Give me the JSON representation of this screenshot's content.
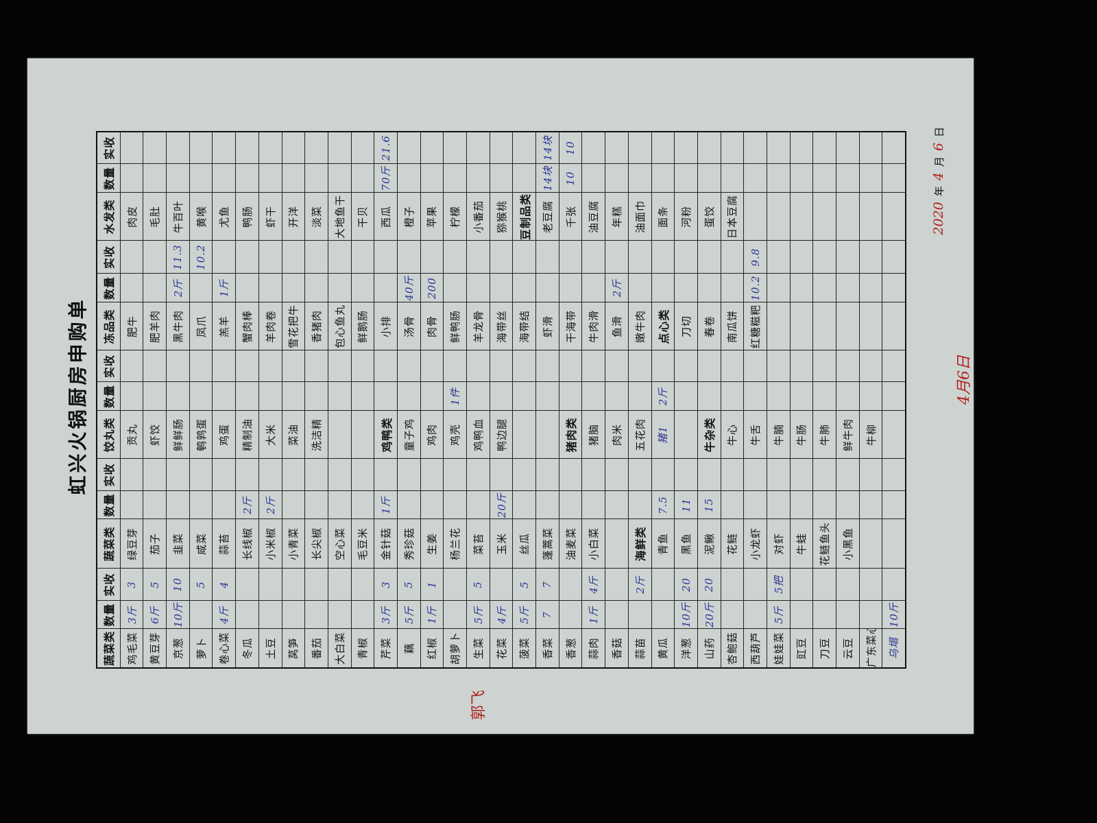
{
  "form": {
    "title": "虹兴火锅厨房申购单",
    "headers": [
      [
        "蔬菜类",
        "数量",
        "实收"
      ],
      [
        "蔬菜类",
        "数量",
        "实收"
      ],
      [
        "饺丸类",
        "数量",
        "实收"
      ],
      [
        "冻品类",
        "数量",
        "实收"
      ],
      [
        "水发类",
        "数量",
        "实收"
      ]
    ],
    "rows": [
      [
        [
          "鸡毛菜",
          "3斤",
          "3"
        ],
        [
          "绿豆芽",
          "",
          ""
        ],
        [
          "贡丸",
          "",
          ""
        ],
        [
          "肥牛",
          "",
          ""
        ],
        [
          "肉皮",
          "",
          ""
        ]
      ],
      [
        [
          "黄豆芽",
          "6斤",
          "5"
        ],
        [
          "茄子",
          "",
          ""
        ],
        [
          "虾饺",
          "",
          ""
        ],
        [
          "肥羊肉",
          "",
          ""
        ],
        [
          "毛肚",
          "",
          ""
        ]
      ],
      [
        [
          "京葱",
          "10斤",
          "10"
        ],
        [
          "韭菜",
          "",
          ""
        ],
        [
          "鲜鲜肠",
          "",
          ""
        ],
        [
          "黑牛肉",
          "2斤",
          "11.3"
        ],
        [
          "牛百叶",
          "",
          ""
        ]
      ],
      [
        [
          "萝卜",
          "",
          "5"
        ],
        [
          "咸菜",
          "",
          ""
        ],
        [
          "鹌鹑蛋",
          "",
          ""
        ],
        [
          "凤爪",
          "",
          "10.2"
        ],
        [
          "黄喉",
          "",
          ""
        ]
      ],
      [
        [
          "卷心菜",
          "4斤",
          "4"
        ],
        [
          "蒜苔",
          "",
          ""
        ],
        [
          "鸡蛋",
          "",
          ""
        ],
        [
          "羔羊",
          "1斤",
          ""
        ],
        [
          "尤鱼",
          "",
          ""
        ]
      ],
      [
        [
          "冬瓜",
          "",
          ""
        ],
        [
          "长线椒",
          "2斤",
          ""
        ],
        [
          "精制油",
          "",
          ""
        ],
        [
          "蟹肉棒",
          "",
          ""
        ],
        [
          "鸭肠",
          "",
          ""
        ]
      ],
      [
        [
          "土豆",
          "",
          ""
        ],
        [
          "小米椒",
          "2斤",
          ""
        ],
        [
          "大米",
          "",
          ""
        ],
        [
          "羊肉卷",
          "",
          ""
        ],
        [
          "虾干",
          "",
          ""
        ]
      ],
      [
        [
          "莴笋",
          "",
          ""
        ],
        [
          "小青菜",
          "",
          ""
        ],
        [
          "菜油",
          "",
          ""
        ],
        [
          "雪花把牛",
          "",
          ""
        ],
        [
          "开洋",
          "",
          ""
        ]
      ],
      [
        [
          "番茄",
          "",
          ""
        ],
        [
          "长尖椒",
          "",
          ""
        ],
        [
          "洗洁精",
          "",
          ""
        ],
        [
          "香猪肉",
          "",
          ""
        ],
        [
          "淡菜",
          "",
          ""
        ]
      ],
      [
        [
          "大白菜",
          "",
          ""
        ],
        [
          "空心菜",
          "",
          ""
        ],
        [
          "",
          "",
          ""
        ],
        [
          "包心鱼丸",
          "",
          ""
        ],
        [
          "大地鱼干",
          "",
          ""
        ]
      ],
      [
        [
          "青椒",
          "",
          ""
        ],
        [
          "毛豆米",
          "",
          ""
        ],
        [
          "",
          "",
          ""
        ],
        [
          "鲜鹅肠",
          "",
          ""
        ],
        [
          "干贝",
          "",
          ""
        ]
      ],
      [
        [
          "芹菜",
          "3斤",
          "3"
        ],
        [
          "金针菇",
          "1斤",
          ""
        ],
        [
          "鸡鸭类",
          "",
          ""
        ],
        [
          "小排",
          "",
          ""
        ],
        [
          "西瓜",
          "70斤",
          "21.6"
        ]
      ],
      [
        [
          "藕",
          "5斤",
          "5"
        ],
        [
          "秀珍菇",
          "",
          ""
        ],
        [
          "童子鸡",
          "",
          ""
        ],
        [
          "汤骨",
          "40斤",
          ""
        ],
        [
          "橙子",
          "",
          ""
        ]
      ],
      [
        [
          "红椒",
          "1斤",
          "1"
        ],
        [
          "生姜",
          "",
          ""
        ],
        [
          "鸡肉",
          "",
          ""
        ],
        [
          "肉骨",
          "200",
          ""
        ],
        [
          "苹果",
          "",
          ""
        ]
      ],
      [
        [
          "胡萝卜",
          "",
          ""
        ],
        [
          "杨兰花",
          "",
          ""
        ],
        [
          "鸡壳",
          "1件",
          ""
        ],
        [
          "鲜鸭肠",
          "",
          ""
        ],
        [
          "柠檬",
          "",
          ""
        ]
      ],
      [
        [
          "生菜",
          "5斤",
          "5"
        ],
        [
          "菜苔",
          "",
          ""
        ],
        [
          "鸡鸭血",
          "",
          ""
        ],
        [
          "羊龙骨",
          "",
          ""
        ],
        [
          "小番茄",
          "",
          ""
        ]
      ],
      [
        [
          "花菜",
          "4斤",
          ""
        ],
        [
          "玉米",
          "20斤",
          ""
        ],
        [
          "鸭边腿",
          "",
          ""
        ],
        [
          "海带丝",
          "",
          ""
        ],
        [
          "猕猴桃",
          "",
          ""
        ]
      ],
      [
        [
          "菠菜",
          "5斤",
          "5"
        ],
        [
          "丝瓜",
          "",
          ""
        ],
        [
          "",
          "",
          ""
        ],
        [
          "海带结",
          "",
          ""
        ],
        [
          "豆制品类",
          "",
          ""
        ]
      ],
      [
        [
          "香菜",
          "7",
          "7"
        ],
        [
          "蓬蒿菜",
          "",
          ""
        ],
        [
          "",
          "",
          ""
        ],
        [
          "虾滑",
          "",
          ""
        ],
        [
          "老豆腐",
          "14块",
          "14块"
        ]
      ],
      [
        [
          "香葱",
          "",
          ""
        ],
        [
          "油麦菜",
          "",
          ""
        ],
        [
          "猪肉类",
          "",
          ""
        ],
        [
          "干海带",
          "",
          ""
        ],
        [
          "千张",
          "10",
          "10"
        ]
      ],
      [
        [
          "蒜肉",
          "1斤",
          "4斤"
        ],
        [
          "小白菜",
          "",
          ""
        ],
        [
          "猪脑",
          "",
          ""
        ],
        [
          "牛肉滑",
          "",
          ""
        ],
        [
          "油豆腐",
          "",
          ""
        ]
      ],
      [
        [
          "香菇",
          "",
          ""
        ],
        [
          "",
          "",
          ""
        ],
        [
          "肉米",
          "",
          ""
        ],
        [
          "鱼滑",
          "2斤",
          ""
        ],
        [
          "年糕",
          "",
          ""
        ]
      ],
      [
        [
          "蒜苗",
          "",
          "2斤"
        ],
        [
          "海鲜类",
          "",
          ""
        ],
        [
          "五花肉",
          "",
          ""
        ],
        [
          "嫩牛肉",
          "",
          ""
        ],
        [
          "油面巾",
          "",
          ""
        ]
      ],
      [
        [
          "黄瓜",
          "",
          ""
        ],
        [
          "青鱼",
          "7.5",
          ""
        ],
        [
          "猪1",
          "2斤",
          ""
        ],
        [
          "点心类",
          "",
          ""
        ],
        [
          "面条",
          "",
          ""
        ]
      ],
      [
        [
          "洋葱",
          "10斤",
          "20"
        ],
        [
          "黑鱼",
          "11",
          ""
        ],
        [
          "",
          "",
          ""
        ],
        [
          "刀切",
          "",
          ""
        ],
        [
          "河粉",
          "",
          ""
        ]
      ],
      [
        [
          "山药",
          "20斤",
          "20"
        ],
        [
          "泥鳅",
          "15",
          ""
        ],
        [
          "牛杂类",
          "",
          ""
        ],
        [
          "春卷",
          "",
          ""
        ],
        [
          "蛋饺",
          "",
          ""
        ]
      ],
      [
        [
          "杏鲍菇",
          "",
          ""
        ],
        [
          "花鲢",
          "",
          ""
        ],
        [
          "牛心",
          "",
          ""
        ],
        [
          "南瓜饼",
          "",
          ""
        ],
        [
          "日本豆腐",
          "",
          ""
        ]
      ],
      [
        [
          "西葫芦",
          "",
          ""
        ],
        [
          "小龙虾",
          "",
          ""
        ],
        [
          "牛舌",
          "",
          ""
        ],
        [
          "红糖糍粑",
          "10.2",
          "9.8"
        ],
        [
          "",
          "",
          ""
        ]
      ],
      [
        [
          "娃娃菜",
          "5斤",
          "5把"
        ],
        [
          "对虾",
          "",
          ""
        ],
        [
          "牛腩",
          "",
          ""
        ],
        [
          "",
          "",
          ""
        ],
        [
          "",
          "",
          ""
        ]
      ],
      [
        [
          "豇豆",
          "",
          ""
        ],
        [
          "牛蛙",
          "",
          ""
        ],
        [
          "牛肠",
          "",
          ""
        ],
        [
          "",
          "",
          ""
        ],
        [
          "",
          "",
          ""
        ]
      ],
      [
        [
          "刀豆",
          "",
          ""
        ],
        [
          "花鲢鱼头",
          "",
          ""
        ],
        [
          "牛肺",
          "",
          ""
        ],
        [
          "",
          "",
          ""
        ],
        [
          "",
          "",
          ""
        ]
      ],
      [
        [
          "云豆",
          "",
          ""
        ],
        [
          "小黑鱼",
          "",
          ""
        ],
        [
          "鲜牛肉",
          "",
          ""
        ],
        [
          "",
          "",
          ""
        ],
        [
          "",
          "",
          ""
        ]
      ],
      [
        [
          "广东菜心",
          "",
          ""
        ],
        [
          "",
          "",
          ""
        ],
        [
          "牛柳",
          "",
          ""
        ],
        [
          "",
          "",
          ""
        ],
        [
          "",
          "",
          ""
        ]
      ],
      [
        [
          "乌塌",
          "10斤",
          ""
        ],
        [
          "",
          "",
          ""
        ],
        [
          "",
          "",
          ""
        ],
        [
          "",
          "",
          ""
        ],
        [
          "",
          "",
          ""
        ]
      ]
    ],
    "section_headers": [
      "鸡鸭类",
      "猪肉类",
      "海鲜类",
      "牛杂类",
      "点心类",
      "豆制品类"
    ],
    "handwritten_items": [
      "乌塌",
      "猪1"
    ],
    "date": {
      "year": "2020",
      "year_label": "年",
      "month": "4",
      "month_label": "月",
      "day": "6",
      "day_label": "日"
    },
    "note_date": "4月6日",
    "signature": "郭飞"
  },
  "colors": {
    "ink_blue": "#2b3596",
    "ink_red": "#b0231f",
    "paper": "#cdd3d0"
  }
}
